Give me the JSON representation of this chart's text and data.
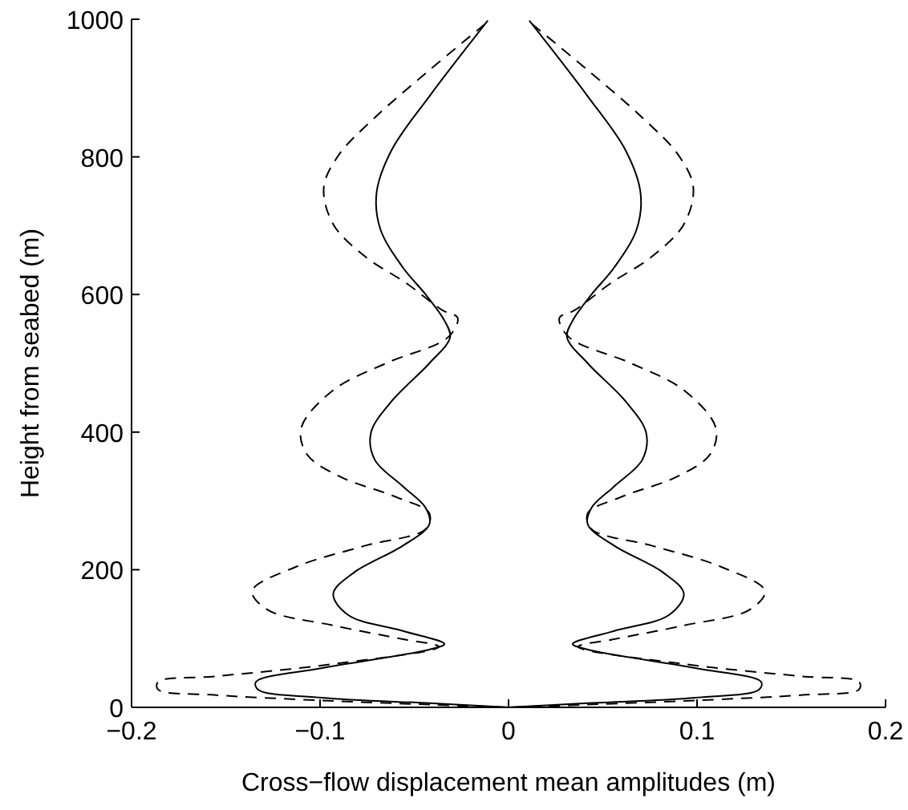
{
  "chart_data": {
    "type": "line",
    "xlabel": "Cross−flow displacement mean amplitudes (m)",
    "ylabel": "Height from seabed (m)",
    "xlim": [
      -0.2,
      0.2
    ],
    "xticks": [
      {
        "value": -0.2,
        "label": "−0.2"
      },
      {
        "value": -0.1,
        "label": "−0.1"
      },
      0,
      0.1,
      0.2
    ],
    "ylim": [
      0,
      1000
    ],
    "yticks": [
      0,
      200,
      400,
      600,
      800,
      1000
    ],
    "grid": false,
    "series": [
      {
        "color": "#000000",
        "line_style": "solid",
        "x": [
          0.011,
          0.042,
          0.062,
          0.07,
          0.068,
          0.056,
          0.044,
          0.034,
          0.031,
          0.042,
          0.062,
          0.073,
          0.071,
          0.056,
          0.044,
          0.042,
          0.056,
          0.082,
          0.093,
          0.085,
          0.056,
          0.034,
          0.042,
          0.099,
          0.134,
          0.133,
          0.099,
          0.042,
          0
        ],
        "values": [
          998,
          888,
          810,
          748,
          695,
          639,
          600,
          562,
          538,
          500,
          445,
          399,
          360,
          321,
          290,
          266,
          235,
          196,
          165,
          134,
          111,
          92,
          84,
          57,
          37,
          26,
          14,
          6,
          0
        ]
      },
      {
        "color": "#000000",
        "line_style": "solid",
        "x": [
          -0.011,
          -0.042,
          -0.062,
          -0.07,
          -0.068,
          -0.056,
          -0.044,
          -0.034,
          -0.031,
          -0.042,
          -0.062,
          -0.073,
          -0.071,
          -0.056,
          -0.044,
          -0.042,
          -0.056,
          -0.082,
          -0.093,
          -0.085,
          -0.056,
          -0.034,
          -0.042,
          -0.099,
          -0.134,
          -0.133,
          -0.099,
          -0.042,
          0
        ],
        "values": [
          998,
          888,
          810,
          748,
          695,
          639,
          600,
          562,
          538,
          500,
          445,
          399,
          360,
          321,
          290,
          266,
          235,
          196,
          165,
          134,
          111,
          92,
          84,
          57,
          37,
          26,
          14,
          6,
          0
        ]
      },
      {
        "color": "#000000",
        "line_style": "dashed",
        "x": [
          0.0125,
          0.042,
          0.071,
          0.09,
          0.098,
          0.093,
          0.076,
          0.054,
          0.035,
          0.027,
          0.032,
          0.065,
          0.093,
          0.11,
          0.107,
          0.09,
          0.059,
          0.042,
          0.044,
          0.076,
          0.113,
          0.136,
          0.128,
          0.093,
          0.056,
          0.037,
          0.099,
          0.156,
          0.186,
          0.186,
          0.156,
          0.099,
          0.042,
          0
        ],
        "values": [
          993,
          926,
          857,
          803,
          756,
          702,
          655,
          616,
          577,
          566,
          538,
          500,
          461,
          406,
          368,
          336,
          305,
          282,
          259,
          235,
          204,
          169,
          142,
          119,
          99,
          88,
          61,
          45,
          37,
          26,
          18,
          10,
          4,
          0
        ]
      },
      {
        "color": "#000000",
        "line_style": "dashed",
        "x": [
          -0.0125,
          -0.042,
          -0.071,
          -0.09,
          -0.098,
          -0.093,
          -0.076,
          -0.054,
          -0.035,
          -0.027,
          -0.032,
          -0.065,
          -0.093,
          -0.11,
          -0.107,
          -0.09,
          -0.059,
          -0.042,
          -0.044,
          -0.076,
          -0.113,
          -0.136,
          -0.128,
          -0.093,
          -0.056,
          -0.037,
          -0.099,
          -0.156,
          -0.186,
          -0.186,
          -0.156,
          -0.099,
          -0.042,
          0
        ],
        "values": [
          993,
          926,
          857,
          803,
          756,
          702,
          655,
          616,
          577,
          566,
          538,
          500,
          461,
          406,
          368,
          336,
          305,
          282,
          259,
          235,
          204,
          169,
          142,
          119,
          99,
          88,
          61,
          45,
          37,
          26,
          18,
          10,
          4,
          0
        ]
      }
    ]
  }
}
